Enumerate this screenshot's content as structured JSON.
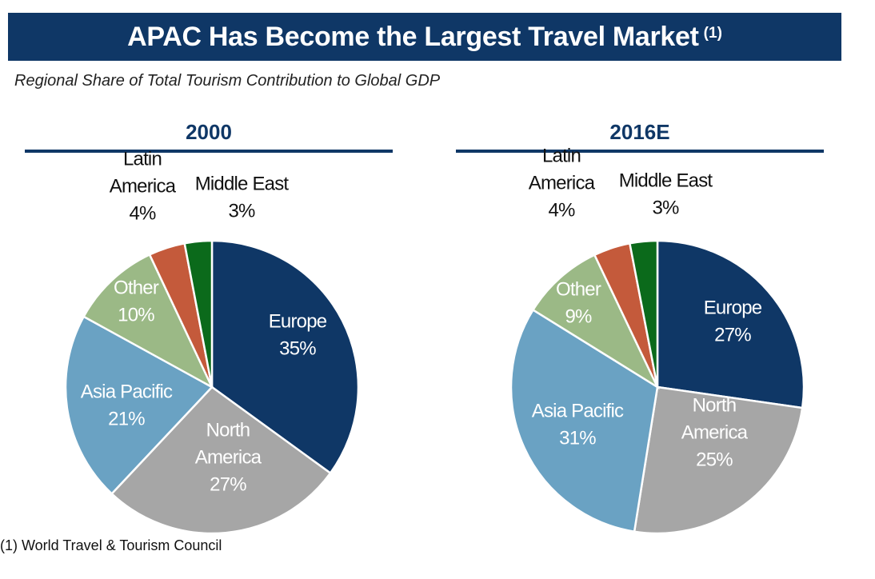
{
  "header": {
    "title": "APAC Has Become the Largest Travel Market",
    "title_sup": "(1)"
  },
  "subtitle": "Regional Share of Total Tourism Contribution to Global GDP",
  "footnote": "(1) World Travel & Tourism Council",
  "colors": {
    "Europe": "#0f3766",
    "North America": "#a6a6a6",
    "Asia Pacific": "#6aa2c3",
    "Other": "#9bb986",
    "Latin America": "#c45a3b",
    "Middle East": "#0b6a1b"
  },
  "chart_data": [
    {
      "type": "pie",
      "title": "2000",
      "slices": [
        {
          "label": [
            "Europe"
          ],
          "pct_label": "35%",
          "value": 35
        },
        {
          "label": [
            "North",
            "America"
          ],
          "pct_label": "27%",
          "value": 27
        },
        {
          "label": [
            "Asia Pacific"
          ],
          "pct_label": "21%",
          "value": 21
        },
        {
          "label": [
            "Other"
          ],
          "pct_label": "10%",
          "value": 10
        },
        {
          "label": [
            "Latin",
            "America"
          ],
          "pct_label": "4%",
          "value": 4
        },
        {
          "label": [
            "Middle East"
          ],
          "pct_label": "3%",
          "value": 3
        }
      ]
    },
    {
      "type": "pie",
      "title": "2016E",
      "slices": [
        {
          "label": [
            "Europe"
          ],
          "pct_label": "27%",
          "value": 27
        },
        {
          "label": [
            "North",
            "America"
          ],
          "pct_label": "25%",
          "value": 25
        },
        {
          "label": [
            "Asia Pacific"
          ],
          "pct_label": "31%",
          "value": 31
        },
        {
          "label": [
            "Other"
          ],
          "pct_label": "9%",
          "value": 9
        },
        {
          "label": [
            "Latin",
            "America"
          ],
          "pct_label": "4%",
          "value": 4
        },
        {
          "label": [
            "Middle East"
          ],
          "pct_label": "3%",
          "value": 3
        }
      ]
    }
  ]
}
